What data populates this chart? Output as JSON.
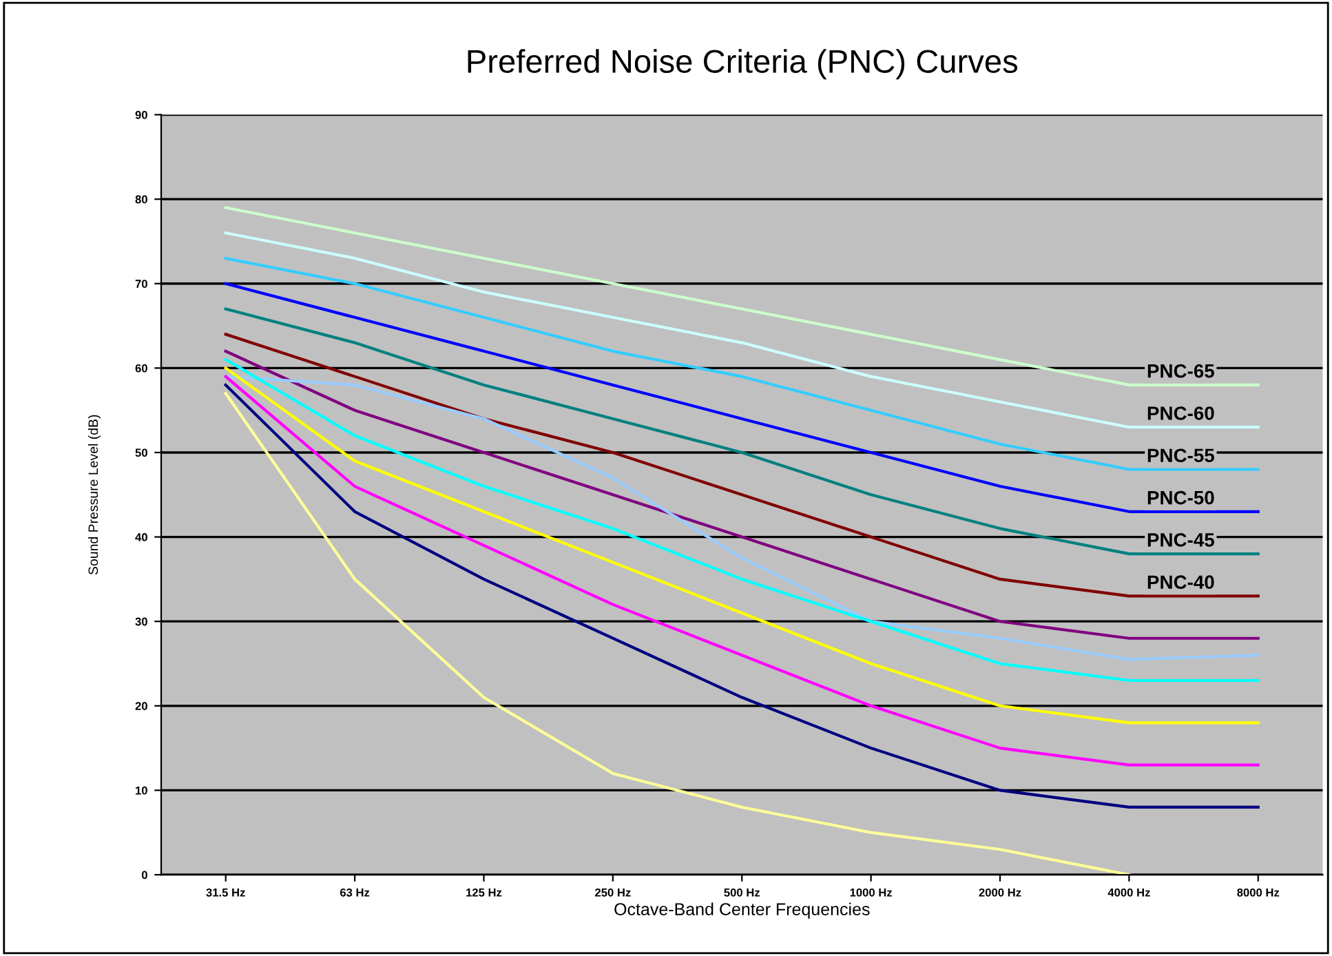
{
  "chart_data": {
    "type": "line",
    "title": "Preferred Noise Criteria (PNC) Curves",
    "xlabel": "Octave-Band Center Frequencies",
    "ylabel": "Sound Pressure Level (dB)",
    "categories": [
      "31.5 Hz",
      "63 Hz",
      "125 Hz",
      "250 Hz",
      "500 Hz",
      "1000 Hz",
      "2000 Hz",
      "4000 Hz",
      "8000 Hz"
    ],
    "series": [
      {
        "name": "PNC-65",
        "color": "#ccffcc",
        "values": [
          79,
          76,
          73,
          70,
          67,
          64,
          61,
          58,
          58
        ]
      },
      {
        "name": "PNC-60",
        "color": "#ccffff",
        "values": [
          76,
          73,
          69,
          66,
          63,
          59,
          56,
          53,
          53
        ]
      },
      {
        "name": "PNC-55",
        "color": "#33ccff",
        "values": [
          73,
          70,
          66,
          62,
          59,
          55,
          51,
          48,
          48
        ]
      },
      {
        "name": "PNC-50",
        "color": "#0000ff",
        "values": [
          70,
          66,
          62,
          58,
          54,
          50,
          46,
          43,
          43
        ]
      },
      {
        "name": "PNC-45",
        "color": "#008080",
        "values": [
          67,
          63,
          58,
          54,
          50,
          45,
          41,
          38,
          38
        ]
      },
      {
        "name": "PNC-40",
        "color": "#800000",
        "values": [
          64,
          59,
          54,
          50,
          45,
          40,
          35,
          33,
          33
        ]
      },
      {
        "color": "#800080",
        "values": [
          62,
          55,
          50,
          45,
          40,
          35,
          30,
          28,
          28
        ]
      },
      {
        "color": "#99ccff",
        "values": [
          59,
          58,
          54,
          47,
          37.5,
          30,
          28,
          25.5,
          26
        ]
      },
      {
        "color": "#00ffff",
        "values": [
          61,
          52,
          46,
          41,
          35,
          30,
          25,
          23,
          23
        ]
      },
      {
        "color": "#ffff00",
        "values": [
          60,
          49,
          43,
          37,
          31,
          25,
          20,
          18,
          18
        ]
      },
      {
        "color": "#ff00ff",
        "values": [
          59,
          46,
          39,
          32,
          26,
          20,
          15,
          13,
          13
        ]
      },
      {
        "color": "#000080",
        "values": [
          58,
          43,
          35,
          28,
          21,
          15,
          10,
          8,
          8
        ]
      },
      {
        "color": "#ffff99",
        "values": [
          57,
          35,
          21,
          12,
          8,
          5,
          3,
          0,
          null
        ]
      }
    ],
    "ylim": [
      0,
      90
    ],
    "yticks": [
      0,
      10,
      20,
      30,
      40,
      50,
      60,
      70,
      80,
      90
    ],
    "grid": "y",
    "legend": false
  }
}
